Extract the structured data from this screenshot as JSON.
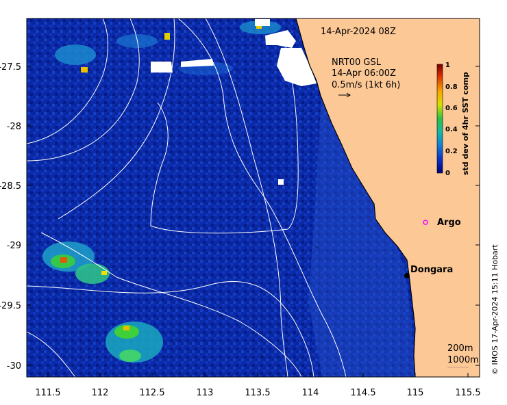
{
  "map": {
    "timestamp": "14-Apr-2024 08Z",
    "current_product": "NRT00 GSL",
    "current_time": "14-Apr 06:00Z",
    "current_scale": "0.5m/s (1kt 6h)",
    "x_ticks": [
      "111.5",
      "112",
      "112.5",
      "113",
      "113.5",
      "114",
      "114.5",
      "115",
      "115.5"
    ],
    "y_ticks": [
      "-27.5",
      "-28",
      "-28.5",
      "-29",
      "-29.5",
      "-30"
    ],
    "places": [
      {
        "name": "Argo",
        "marker": "open-circle",
        "color": "#ff00ff"
      },
      {
        "name": "Dongara",
        "marker": "filled-dot",
        "color": "#000000"
      }
    ],
    "contour_labels": [
      "200m",
      "1000m"
    ],
    "credit": "© IMOS 17-Apr-2024 15:11 Hobart",
    "colors": {
      "ocean": "#08209a",
      "land": "#fcc896",
      "cloud": "#ffffff",
      "contour": "#ffffff"
    }
  },
  "colorbar": {
    "title": "std dev of 4hr SST comp",
    "ticks": [
      "1",
      "0.8",
      "0.6",
      "0.4",
      "0.2",
      "0"
    ],
    "colormap": [
      "#7a0000",
      "#d42a00",
      "#f5a800",
      "#d8e000",
      "#29c24a",
      "#14b8a6",
      "#1280d8",
      "#0a35c8",
      "#000080"
    ]
  }
}
